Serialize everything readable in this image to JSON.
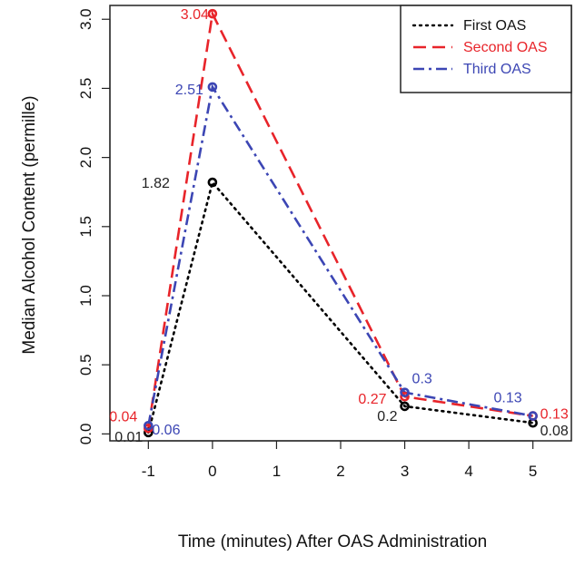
{
  "chart_data": {
    "type": "line",
    "title": "",
    "xlabel": "Time (minutes) After OAS Administration",
    "ylabel": "Median Alcohol Content (permille)",
    "xlim": [
      -1.6,
      5.6
    ],
    "ylim": [
      -0.05,
      3.1
    ],
    "x_ticks": [
      "-1",
      "0",
      "1",
      "2",
      "3",
      "4",
      "5"
    ],
    "y_ticks": [
      "0.0",
      "0.5",
      "1.0",
      "1.5",
      "2.0",
      "2.5",
      "3.0"
    ],
    "grid": false,
    "legend_position": "top-right",
    "x": [
      -1,
      0,
      3,
      5
    ],
    "series": [
      {
        "name": "First OAS",
        "color": "#000000",
        "dash": "dotted",
        "values": [
          0.01,
          1.82,
          0.2,
          0.08
        ],
        "labels": [
          "0.01",
          "1.82",
          "0.2",
          "0.08"
        ]
      },
      {
        "name": "Second OAS",
        "color": "#e8242a",
        "dash": "dashed",
        "values": [
          0.04,
          3.04,
          0.27,
          0.13
        ],
        "labels": [
          "0.04",
          "3.04",
          "0.27",
          "0.13"
        ]
      },
      {
        "name": "Third OAS",
        "color": "#3c46b4",
        "dash": "dashdot",
        "values": [
          0.06,
          2.51,
          0.3,
          0.13
        ],
        "labels": [
          "0.06",
          "2.51",
          "0.3",
          "0.13"
        ]
      }
    ]
  }
}
